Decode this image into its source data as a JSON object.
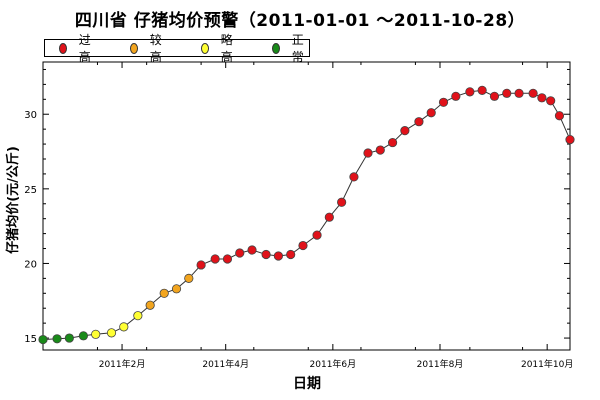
{
  "title": "四川省 仔猪均价预警（2011-01-01 ～2011-10-28）",
  "legend": [
    {
      "label": "过高",
      "color": "#e0121a"
    },
    {
      "label": "较高",
      "color": "#f2a51f"
    },
    {
      "label": "略高",
      "color": "#ffff33"
    },
    {
      "label": "正常",
      "color": "#1a8a1a"
    }
  ],
  "chart_data": {
    "type": "line",
    "title": "四川省 仔猪均价预警（2011-01-01 ～2011-10-28）",
    "xlabel": "日期",
    "ylabel": "仔猪均价(元/公斤)",
    "x_ticks": [
      "2011年2月",
      "2011年4月",
      "2011年6月",
      "2011年8月",
      "2011年10月"
    ],
    "y_ticks": [
      15,
      20,
      25,
      30
    ],
    "ylim": [
      14.2,
      33.5
    ],
    "xlim": [
      "2011-01-01",
      "2011-10-28"
    ],
    "legend_position": "top-left",
    "series": [
      {
        "points": [
          {
            "date": "2011-01-01",
            "value": 14.9,
            "level": "正常"
          },
          {
            "date": "2011-01-09",
            "value": 14.95,
            "level": "正常"
          },
          {
            "date": "2011-01-16",
            "value": 15.0,
            "level": "正常"
          },
          {
            "date": "2011-01-24",
            "value": 15.15,
            "level": "正常"
          },
          {
            "date": "2011-01-31",
            "value": 15.25,
            "level": "略高"
          },
          {
            "date": "2011-02-09",
            "value": 15.35,
            "level": "略高"
          },
          {
            "date": "2011-02-16",
            "value": 15.75,
            "level": "略高"
          },
          {
            "date": "2011-02-24",
            "value": 16.5,
            "level": "略高"
          },
          {
            "date": "2011-03-03",
            "value": 17.2,
            "level": "较高"
          },
          {
            "date": "2011-03-11",
            "value": 18.0,
            "level": "较高"
          },
          {
            "date": "2011-03-18",
            "value": 18.3,
            "level": "较高"
          },
          {
            "date": "2011-03-25",
            "value": 19.0,
            "level": "较高"
          },
          {
            "date": "2011-04-01",
            "value": 19.9,
            "level": "过高"
          },
          {
            "date": "2011-04-09",
            "value": 20.3,
            "level": "过高"
          },
          {
            "date": "2011-04-16",
            "value": 20.3,
            "level": "过高"
          },
          {
            "date": "2011-04-23",
            "value": 20.7,
            "level": "过高"
          },
          {
            "date": "2011-04-30",
            "value": 20.9,
            "level": "过高"
          },
          {
            "date": "2011-05-08",
            "value": 20.6,
            "level": "过高"
          },
          {
            "date": "2011-05-15",
            "value": 20.5,
            "level": "过高"
          },
          {
            "date": "2011-05-22",
            "value": 20.6,
            "level": "过高"
          },
          {
            "date": "2011-05-29",
            "value": 21.2,
            "level": "过高"
          },
          {
            "date": "2011-06-06",
            "value": 21.9,
            "level": "过高"
          },
          {
            "date": "2011-06-13",
            "value": 23.1,
            "level": "过高"
          },
          {
            "date": "2011-06-20",
            "value": 24.1,
            "level": "过高"
          },
          {
            "date": "2011-06-27",
            "value": 25.8,
            "level": "过高"
          },
          {
            "date": "2011-07-05",
            "value": 27.4,
            "level": "过高"
          },
          {
            "date": "2011-07-12",
            "value": 27.6,
            "level": "过高"
          },
          {
            "date": "2011-07-19",
            "value": 28.1,
            "level": "过高"
          },
          {
            "date": "2011-07-26",
            "value": 28.9,
            "level": "过高"
          },
          {
            "date": "2011-08-03",
            "value": 29.5,
            "level": "过高"
          },
          {
            "date": "2011-08-10",
            "value": 30.1,
            "level": "过高"
          },
          {
            "date": "2011-08-17",
            "value": 30.8,
            "level": "过高"
          },
          {
            "date": "2011-08-24",
            "value": 31.2,
            "level": "过高"
          },
          {
            "date": "2011-09-01",
            "value": 31.5,
            "level": "过高"
          },
          {
            "date": "2011-09-08",
            "value": 31.6,
            "level": "过高"
          },
          {
            "date": "2011-09-15",
            "value": 31.2,
            "level": "过高"
          },
          {
            "date": "2011-09-22",
            "value": 31.4,
            "level": "过高"
          },
          {
            "date": "2011-09-29",
            "value": 31.4,
            "level": "过高"
          },
          {
            "date": "2011-10-07",
            "value": 31.4,
            "level": "过高"
          },
          {
            "date": "2011-10-12",
            "value": 31.1,
            "level": "过高"
          },
          {
            "date": "2011-10-17",
            "value": 30.9,
            "level": "过高"
          },
          {
            "date": "2011-10-22",
            "value": 29.9,
            "level": "过高"
          },
          {
            "date": "2011-10-28",
            "value": 28.3,
            "level": "过高"
          }
        ]
      }
    ]
  }
}
